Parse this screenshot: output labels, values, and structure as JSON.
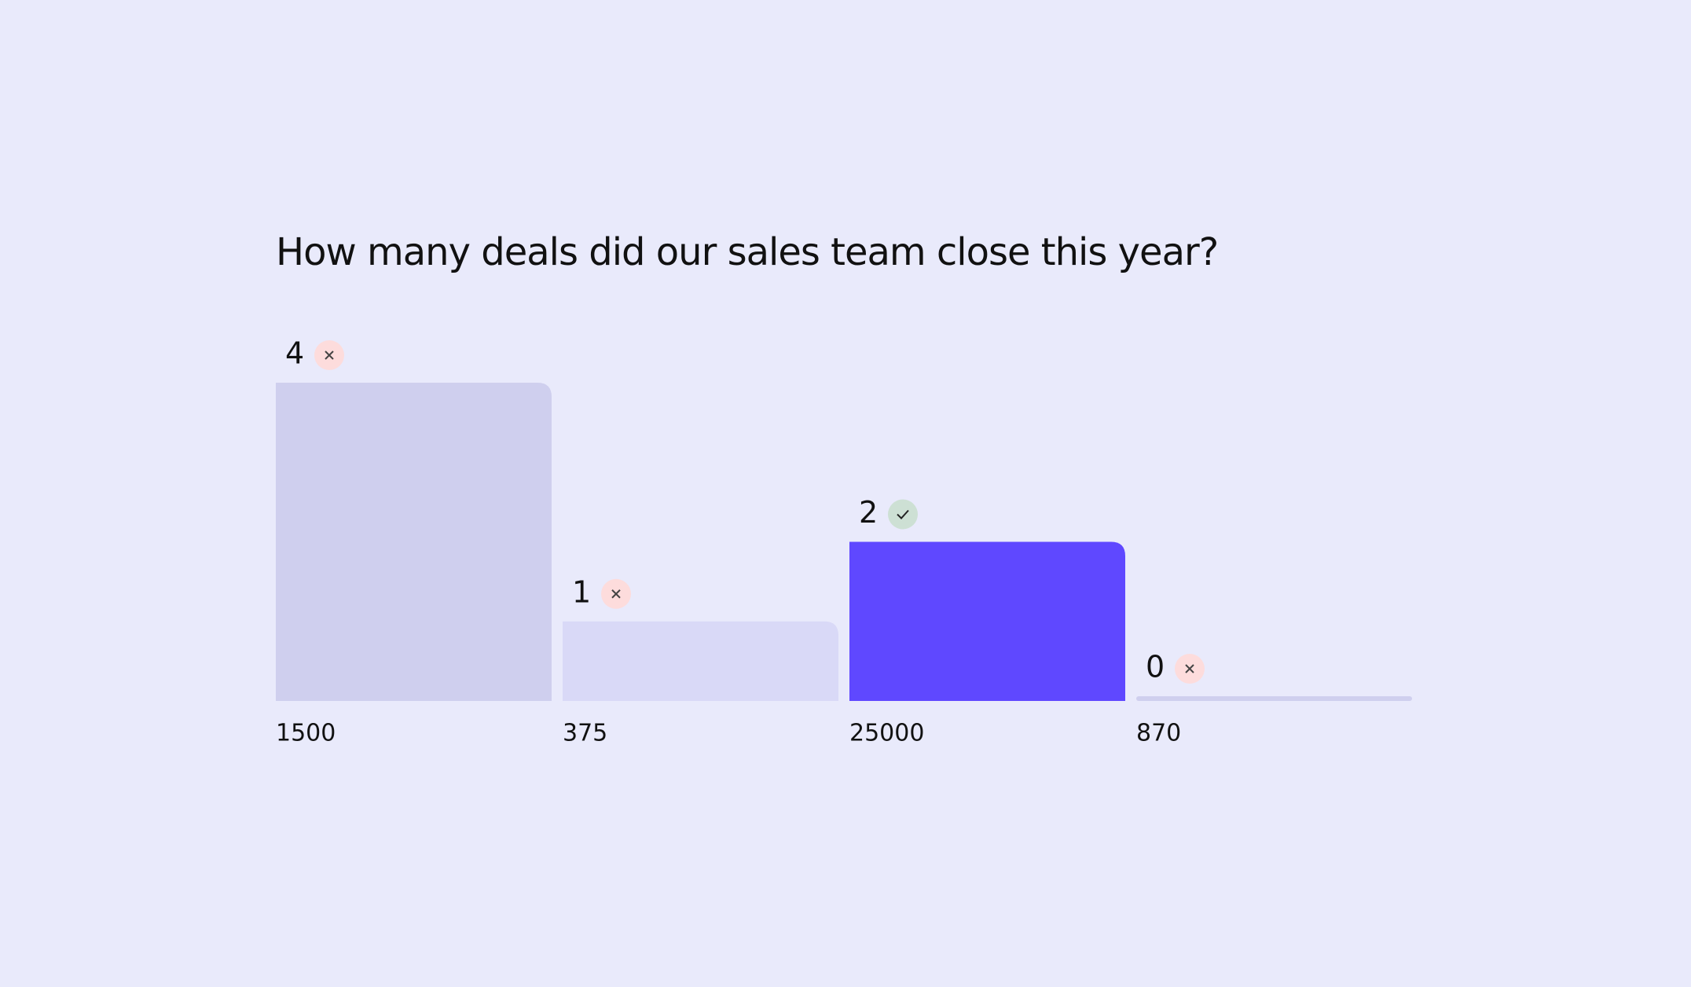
{
  "chart_data": {
    "type": "bar",
    "title": "How many deals did our sales team close this year?",
    "categories": [
      "1500",
      "375",
      "25000",
      "870"
    ],
    "values": [
      4,
      1,
      2,
      0
    ],
    "colors": [
      "#cfcfee",
      "#d9d9f7",
      "#5f48ff",
      "#cfcfee"
    ],
    "correct": [
      false,
      false,
      true,
      false
    ]
  }
}
